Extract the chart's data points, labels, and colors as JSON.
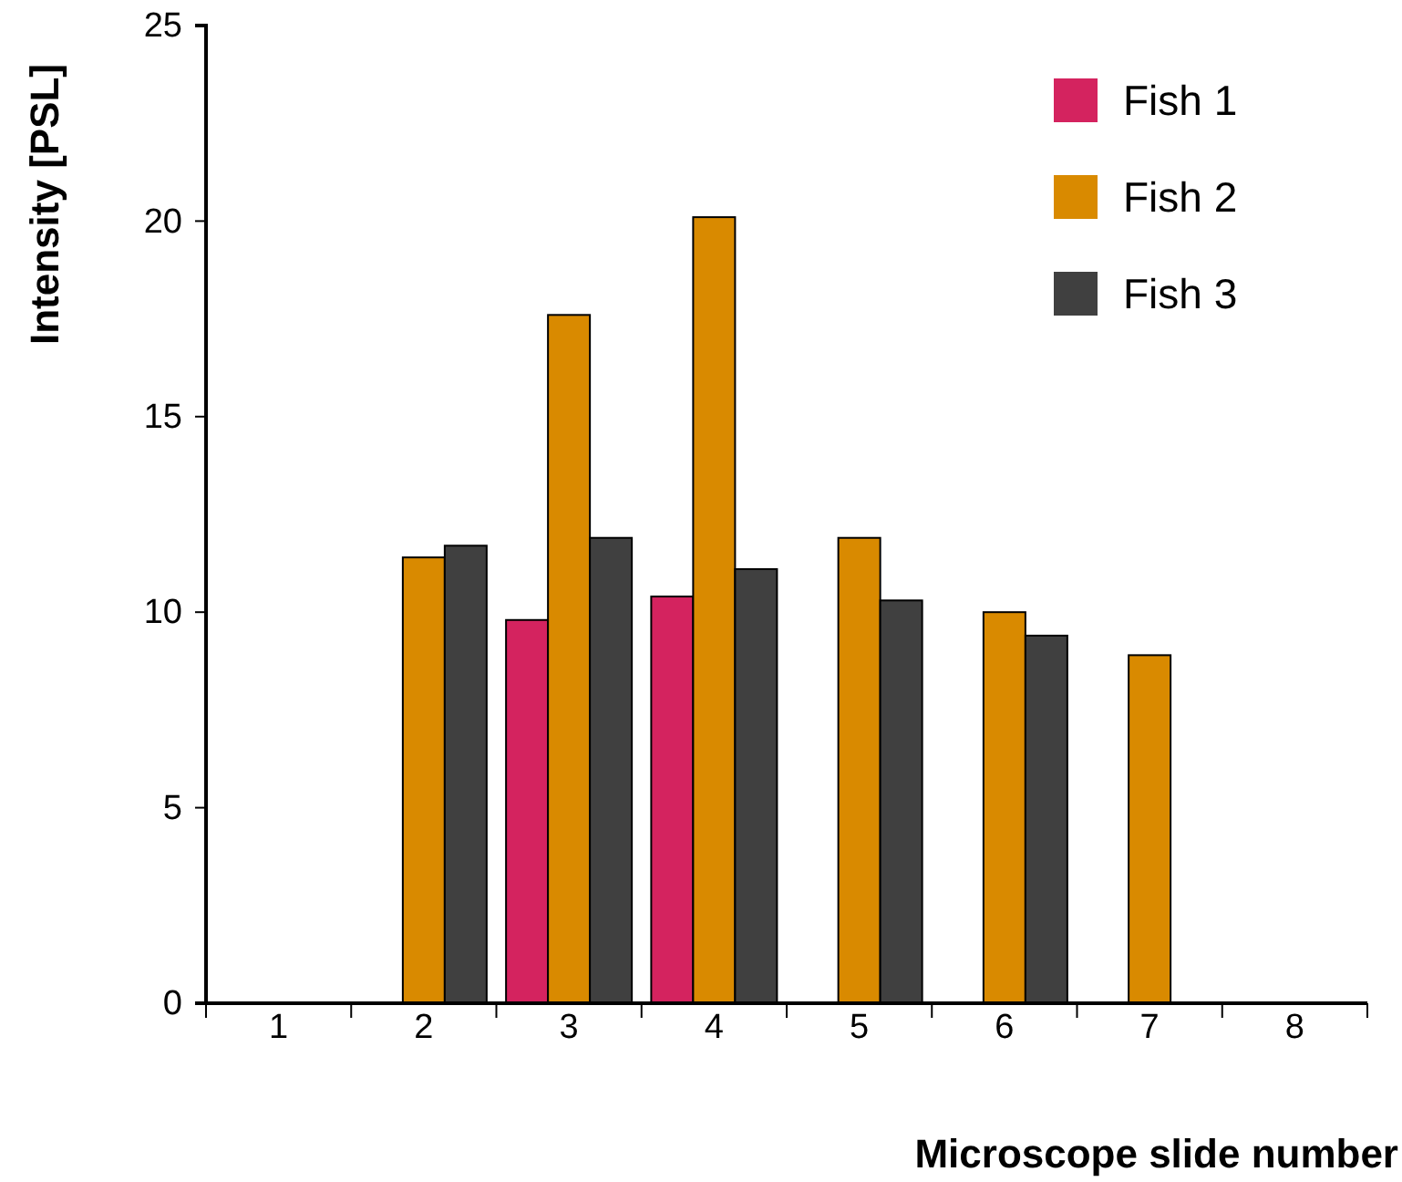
{
  "chart_data": {
    "type": "bar",
    "xlabel": "Microscope slide number",
    "ylabel": "Intensity [PSL]",
    "categories": [
      "1",
      "2",
      "3",
      "4",
      "5",
      "6",
      "7",
      "8"
    ],
    "series": [
      {
        "name": "Fish 1",
        "color": "#d4235f",
        "values": [
          null,
          null,
          9.8,
          10.4,
          null,
          null,
          null,
          null
        ]
      },
      {
        "name": "Fish 2",
        "color": "#d98a00",
        "values": [
          null,
          11.4,
          17.6,
          20.1,
          11.9,
          10.0,
          8.9,
          null
        ]
      },
      {
        "name": "Fish 3",
        "color": "#404040",
        "values": [
          null,
          11.7,
          11.9,
          11.1,
          10.3,
          9.4,
          null,
          null
        ]
      }
    ],
    "ylim": [
      0,
      25
    ],
    "yticks": [
      0,
      5,
      10,
      15,
      20,
      25
    ],
    "grid": false,
    "legend": "top right"
  }
}
